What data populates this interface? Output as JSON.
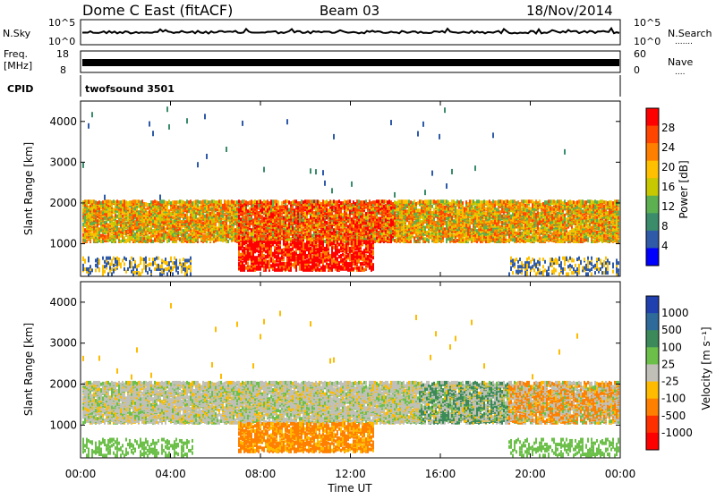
{
  "header": {
    "station": "Dome C East (fitACF)",
    "beam": "Beam 03",
    "date": "18/Nov/2014"
  },
  "colors": {
    "noise_trace": "#000000",
    "frame": "#000000"
  },
  "chart_data": [
    {
      "type": "line",
      "name": "noise",
      "left_label": "N.Sky",
      "right_label": "N.Search",
      "left_ticks": [
        "10^5",
        "10^0"
      ],
      "right_ticks": [
        "10^5",
        "10^0"
      ]
    },
    {
      "type": "line",
      "name": "frequency",
      "left_label": "Freq.",
      "left_unit": "[MHz]",
      "right_label": "Nave",
      "left_ticks": [
        "18",
        "8"
      ],
      "right_ticks": [
        "60",
        "0"
      ],
      "ylim_left": [
        8,
        18
      ],
      "ylim_right": [
        0,
        60
      ]
    },
    {
      "type": "table",
      "name": "cpid",
      "label": "CPID",
      "program": "twofsound 3501"
    },
    {
      "type": "heatmap",
      "name": "power",
      "ylabel": "Slant Range [km]",
      "ylim": [
        200,
        4500
      ],
      "yticks": [
        "1000",
        "2000",
        "3000",
        "4000"
      ],
      "colorbar_label": "Power [dB]",
      "colorbar_ticks": [
        "28",
        "24",
        "20",
        "16",
        "12",
        "8",
        "4"
      ],
      "colorbar_colors": [
        "#ff0000",
        "#ff4500",
        "#ff7f00",
        "#ffc000",
        "#c8c800",
        "#5cb050",
        "#3a8c6a",
        "#2e5aa8",
        "#0000ff"
      ]
    },
    {
      "type": "heatmap",
      "name": "velocity",
      "ylabel": "Slant Range [km]",
      "ylim": [
        200,
        4500
      ],
      "yticks": [
        "1000",
        "2000",
        "3000",
        "4000"
      ],
      "colorbar_label": "Velocity [m s⁻¹]",
      "colorbar_ticks": [
        "1000",
        "500",
        "100",
        "25",
        "-25",
        "-100",
        "-500",
        "-1000"
      ],
      "colorbar_colors": [
        "#2040b0",
        "#2e6a9a",
        "#3c8a5a",
        "#6cc04a",
        "#c0c0b8",
        "#ffbb00",
        "#ff8000",
        "#ff3000",
        "#ff0000"
      ],
      "xlabel": "Time UT",
      "xticks": [
        "00:00",
        "04:00",
        "08:00",
        "12:00",
        "16:00",
        "20:00",
        "00:00"
      ],
      "xlim_hours": [
        0,
        24
      ]
    }
  ]
}
